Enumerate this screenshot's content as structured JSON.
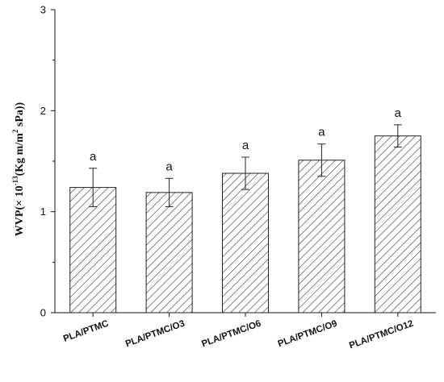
{
  "chart_data": {
    "type": "bar",
    "categories": [
      "PLA/PTMC",
      "PLA/PTMC/O3",
      "PLA/PTMC/O6",
      "PLA/PTMC/O9",
      "PLA/PTMC/O12"
    ],
    "values": [
      1.24,
      1.19,
      1.38,
      1.51,
      1.75
    ],
    "errors": [
      0.19,
      0.14,
      0.16,
      0.16,
      0.11
    ],
    "significance": [
      "a",
      "a",
      "a",
      "a",
      "a"
    ],
    "ylim": [
      0,
      3
    ],
    "yticks": [
      0,
      1,
      2,
      3
    ],
    "ylabel": {
      "prefix": "WVP(× 10",
      "exp1": "-13",
      "mid": "(Kg m/m",
      "exp2": "2",
      "suffix": " sPa))"
    },
    "bar_fill": "hatched",
    "bar_color": "#333333"
  }
}
